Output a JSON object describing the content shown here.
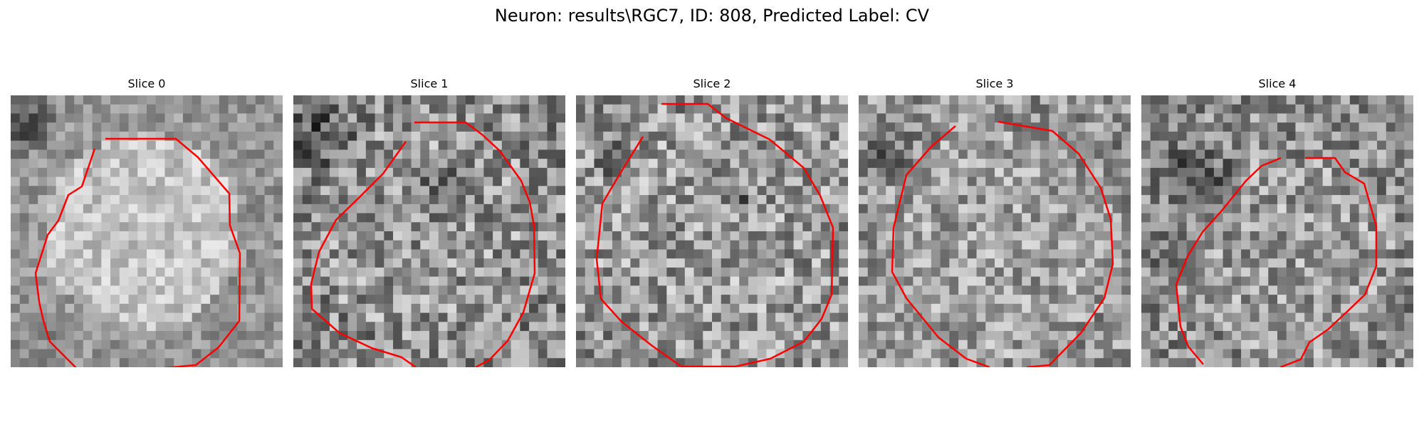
{
  "figure": {
    "title": "Neuron: results\\RGC7, ID: 808, Predicted Label: CV",
    "contour_color": "#ff0000",
    "colormap": "gray"
  },
  "panels": [
    {
      "title": "Slice 0"
    },
    {
      "title": "Slice 1"
    },
    {
      "title": "Slice 2"
    },
    {
      "title": "Slice 3"
    },
    {
      "title": "Slice 4"
    }
  ]
}
